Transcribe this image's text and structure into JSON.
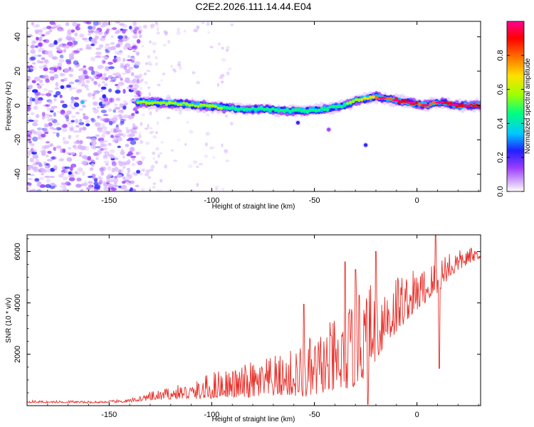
{
  "title": "C2E2.2026.111.14.44.E04",
  "colors": {
    "snr_line": "#e8302a",
    "frame": "#000000"
  },
  "chart_data": [
    {
      "type": "heatmap",
      "name": "spectrogram",
      "xlabel": "Height of straight line (km)",
      "ylabel": "Frequency (Hz)",
      "xlim": [
        -190,
        31
      ],
      "ylim": [
        -50,
        49
      ],
      "xticks": [
        -150,
        -100,
        -50,
        0
      ],
      "xtick_labels": [
        "-150",
        "-100",
        "-50",
        "0"
      ],
      "yticks": [
        -40,
        -20,
        0,
        20,
        40
      ],
      "ytick_labels": [
        "-40",
        "-20",
        "0",
        "20",
        "40"
      ],
      "colorbar": {
        "label": "Normalized spectral amplitude",
        "range": [
          0,
          1
        ],
        "ticks": [
          0.0,
          0.2,
          0.4,
          0.6,
          0.8
        ],
        "tick_labels": [
          "0.0",
          "0.2",
          "0.4",
          "0.6",
          "0.8"
        ],
        "colors": [
          "#ffffff",
          "#d9b6ff",
          "#9a3cff",
          "#2020ff",
          "#00c8ff",
          "#00ff80",
          "#a0ff00",
          "#ffe000",
          "#ff7000",
          "#ff0000",
          "#ff0090"
        ]
      },
      "ridge": {
        "x": [
          -136,
          -125,
          -115,
          -105,
          -95,
          -85,
          -75,
          -65,
          -55,
          -45,
          -35,
          -30,
          -25,
          -20,
          -15,
          -10,
          -5,
          0,
          5,
          10,
          15,
          20,
          25,
          31
        ],
        "freq_hz": [
          2,
          1.5,
          1,
          0,
          -1,
          -2,
          -2,
          -3,
          -3,
          -2,
          0,
          3,
          4,
          5,
          4,
          3,
          2,
          1,
          0,
          2,
          1,
          0,
          0,
          0
        ],
        "amplitude": [
          0.55,
          0.6,
          0.6,
          0.55,
          0.55,
          0.5,
          0.55,
          0.5,
          0.5,
          0.5,
          0.55,
          0.6,
          0.7,
          0.75,
          0.8,
          0.85,
          0.9,
          0.85,
          0.8,
          0.85,
          0.85,
          0.9,
          0.9,
          0.9
        ]
      },
      "isolated_blobs": [
        {
          "x": -58,
          "freq_hz": -10,
          "amplitude": 0.3
        },
        {
          "x": -43,
          "freq_hz": -14,
          "amplitude": 0.2
        },
        {
          "x": -25,
          "freq_hz": -23,
          "amplitude": 0.3
        },
        {
          "x": -163,
          "freq_hz": 2,
          "amplitude": 0.35
        }
      ],
      "noise_region": {
        "x": [
          -190,
          -135
        ],
        "freq_hz": [
          -50,
          49
        ],
        "amplitude": [
          0.05,
          0.3
        ]
      },
      "sparse_noise_region": {
        "x": [
          -135,
          -90
        ],
        "freq_hz": [
          -50,
          49
        ],
        "amplitude": [
          0.02,
          0.12
        ]
      }
    },
    {
      "type": "line",
      "name": "snr",
      "xlabel": "Height of straight line (km)",
      "ylabel": "SNR (10 * v/v)",
      "xlim": [
        -190,
        31
      ],
      "ylim": [
        0,
        6650
      ],
      "xticks": [
        -150,
        -100,
        -50,
        0
      ],
      "xtick_labels": [
        "-150",
        "-100",
        "-50",
        "0"
      ],
      "yticks": [
        2000,
        4000,
        6000
      ],
      "ytick_labels": [
        "2000",
        "4000",
        "6000"
      ],
      "series": [
        {
          "x": [
            -190,
            -180,
            -170,
            -160,
            -150,
            -140,
            -135,
            -130,
            -125,
            -120,
            -115,
            -110,
            -105,
            -100,
            -95,
            -90,
            -85,
            -80,
            -75,
            -70,
            -65,
            -60,
            -55,
            -50,
            -45,
            -40,
            -35,
            -30,
            -25,
            -20,
            -15,
            -10,
            -5,
            0,
            5,
            10,
            15,
            20,
            25,
            31
          ],
          "values": [
            150,
            130,
            140,
            120,
            140,
            170,
            250,
            300,
            350,
            400,
            450,
            450,
            500,
            600,
            700,
            650,
            700,
            750,
            800,
            850,
            900,
            950,
            1000,
            1100,
            1300,
            1400,
            1600,
            1800,
            2200,
            2700,
            3300,
            3600,
            3900,
            4200,
            4500,
            4800,
            5300,
            5500,
            5700,
            5900
          ],
          "spread": [
            60,
            50,
            60,
            50,
            60,
            80,
            150,
            200,
            250,
            300,
            350,
            400,
            500,
            700,
            700,
            700,
            800,
            900,
            900,
            1000,
            1000,
            1200,
            1400,
            1500,
            1600,
            1800,
            2000,
            2200,
            2200,
            2000,
            1800,
            1600,
            1200,
            1000,
            900,
            900,
            800,
            500,
            400,
            300
          ]
        }
      ],
      "peaks": [
        {
          "x": 9,
          "value": 6650
        },
        {
          "x": -20,
          "value": 6000
        },
        {
          "x": -35,
          "value": 5600
        },
        {
          "x": -30,
          "value": 5300
        },
        {
          "x": -55,
          "value": 3950
        },
        {
          "x": -28,
          "value": 4300
        }
      ],
      "dips": [
        {
          "x": 11,
          "value": 1450
        },
        {
          "x": -24,
          "value": 50
        }
      ]
    }
  ]
}
